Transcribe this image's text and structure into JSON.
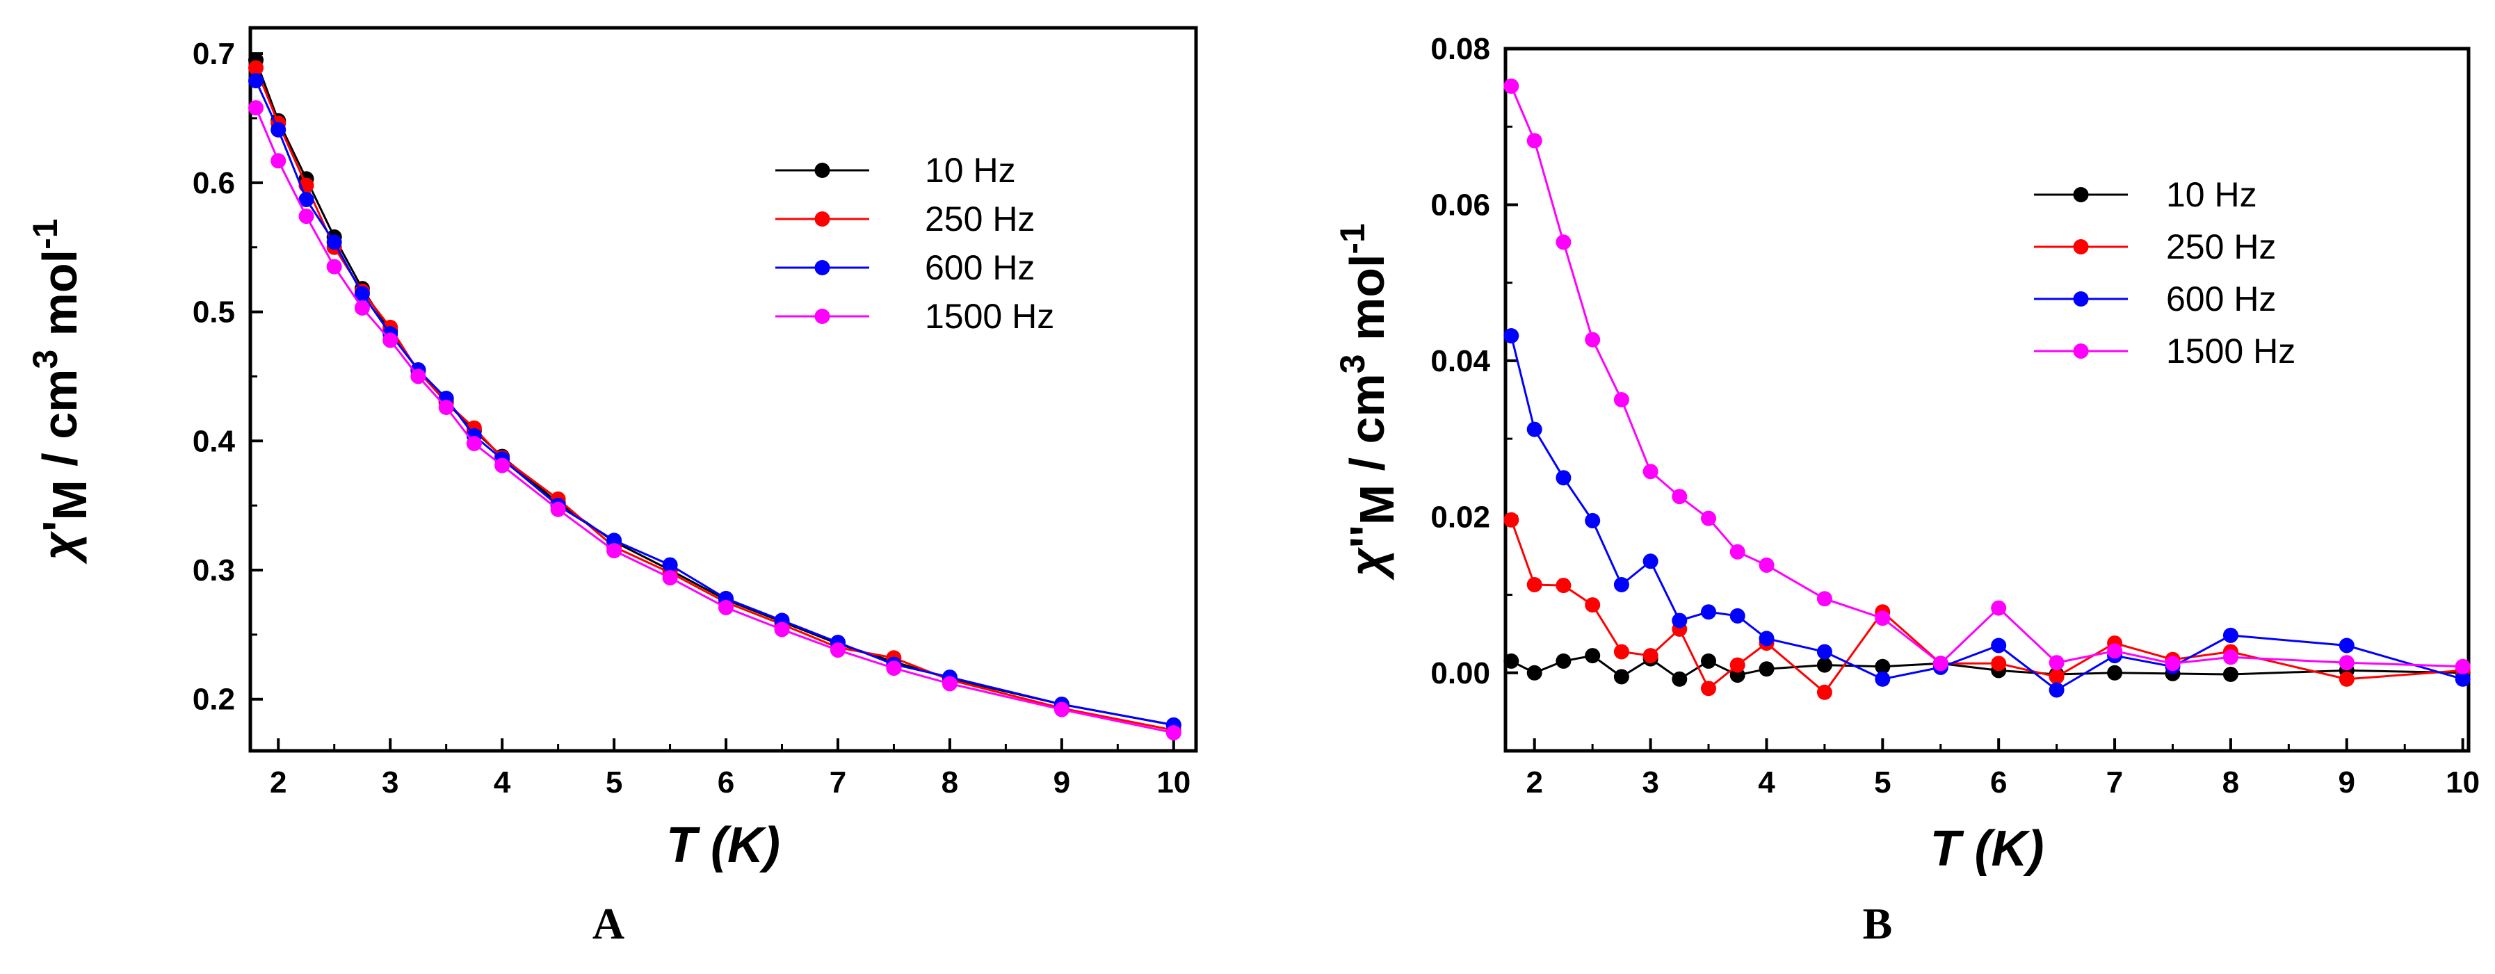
{
  "figure": {
    "panel_a_label": "A",
    "panel_b_label": "B"
  },
  "chart_data": [
    {
      "id": "A",
      "type": "line",
      "title": "",
      "xlabel": "T (K)",
      "ylabel": {
        "chi": "χ",
        "prime": "'",
        "sub": "M",
        "unit": " / cm",
        "sup3": "3",
        "mol": " mol",
        "supneg": "-1"
      },
      "xlim": [
        1.75,
        10.2
      ],
      "ylim": [
        0.16,
        0.72
      ],
      "xticks": [
        2,
        3,
        4,
        5,
        6,
        7,
        8,
        9,
        10
      ],
      "yticks": [
        0.2,
        0.3,
        0.4,
        0.5,
        0.6,
        0.7
      ],
      "ytick_labels": [
        "0.2",
        "0.3",
        "0.4",
        "0.5",
        "0.6",
        "0.7"
      ],
      "legend_position": "upper-right",
      "x": [
        1.8,
        2.0,
        2.25,
        2.5,
        2.75,
        3.0,
        3.25,
        3.5,
        3.75,
        4.0,
        4.5,
        5.0,
        5.5,
        6.0,
        6.5,
        7.0,
        7.5,
        8.0,
        9.0,
        10.0
      ],
      "series": [
        {
          "name": "10 Hz",
          "color": "#000000",
          "values": [
            0.695,
            0.648,
            0.603,
            0.558,
            0.518,
            0.485,
            0.455,
            0.43,
            0.408,
            0.388,
            0.352,
            0.322,
            0.3,
            0.277,
            0.26,
            0.243,
            0.229,
            0.216,
            0.196,
            0.18
          ]
        },
        {
          "name": "250 Hz",
          "color": "#ff0000",
          "values": [
            0.689,
            0.646,
            0.598,
            0.55,
            0.516,
            0.488,
            0.454,
            0.43,
            0.41,
            0.387,
            0.355,
            0.318,
            0.298,
            0.275,
            0.258,
            0.24,
            0.232,
            0.215,
            0.193,
            0.176
          ]
        },
        {
          "name": "600 Hz",
          "color": "#0000ff",
          "values": [
            0.679,
            0.641,
            0.587,
            0.554,
            0.514,
            0.483,
            0.455,
            0.433,
            0.404,
            0.386,
            0.35,
            0.323,
            0.304,
            0.278,
            0.261,
            0.244,
            0.227,
            0.217,
            0.196,
            0.18
          ]
        },
        {
          "name": "1500 Hz",
          "color": "#ff00ff",
          "values": [
            0.658,
            0.617,
            0.574,
            0.535,
            0.503,
            0.478,
            0.45,
            0.426,
            0.398,
            0.381,
            0.347,
            0.315,
            0.294,
            0.271,
            0.254,
            0.238,
            0.224,
            0.212,
            0.192,
            0.174
          ]
        }
      ]
    },
    {
      "id": "B",
      "type": "line",
      "title": "",
      "xlabel": "T (K)",
      "ylabel": {
        "chi": "χ",
        "prime": "''",
        "sub": "M",
        "unit": " / cm",
        "sup3": "3",
        "mol": " mol",
        "supneg": "-1"
      },
      "xlim": [
        1.75,
        10.05
      ],
      "ylim": [
        -0.01,
        0.08
      ],
      "xticks": [
        2,
        3,
        4,
        5,
        6,
        7,
        8,
        9,
        10
      ],
      "yticks": [
        0.0,
        0.02,
        0.04,
        0.06,
        0.08
      ],
      "ytick_labels": [
        "0.00",
        "0.02",
        "0.04",
        "0.06",
        "0.08"
      ],
      "legend_position": "upper-right",
      "x": [
        1.8,
        2.0,
        2.25,
        2.5,
        2.75,
        3.0,
        3.25,
        3.5,
        3.75,
        4.0,
        4.5,
        5.0,
        5.5,
        6.0,
        6.5,
        7.0,
        7.5,
        8.0,
        9.0,
        10.0
      ],
      "series": [
        {
          "name": "10 Hz",
          "color": "#000000",
          "values": [
            0.0015,
            0.0,
            0.0015,
            0.0022,
            -0.0005,
            0.0018,
            -0.0008,
            0.0015,
            -0.0003,
            0.0005,
            0.001,
            0.0008,
            0.0012,
            0.0003,
            -0.0002,
            0.0,
            -0.0001,
            -0.0002,
            0.0003,
            0.0
          ]
        },
        {
          "name": "250 Hz",
          "color": "#ff0000",
          "values": [
            0.0196,
            0.0113,
            0.0112,
            0.0087,
            0.0027,
            0.0022,
            0.0056,
            -0.002,
            0.001,
            0.0038,
            -0.0025,
            0.0078,
            0.0012,
            0.0012,
            -0.0005,
            0.0038,
            0.0017,
            0.0027,
            -0.0008,
            0.0003
          ]
        },
        {
          "name": "600 Hz",
          "color": "#0000ff",
          "values": [
            0.0432,
            0.0312,
            0.025,
            0.0195,
            0.0113,
            0.0143,
            0.0067,
            0.0078,
            0.0073,
            0.0044,
            0.0027,
            -0.0008,
            0.0007,
            0.0035,
            -0.0022,
            0.0022,
            0.0008,
            0.0048,
            0.0035,
            -0.0008
          ]
        },
        {
          "name": "1500 Hz",
          "color": "#ff00ff",
          "values": [
            0.0752,
            0.0682,
            0.0552,
            0.0427,
            0.035,
            0.0258,
            0.0226,
            0.0198,
            0.0155,
            0.0138,
            0.0095,
            0.007,
            0.0012,
            0.0083,
            0.0013,
            0.0028,
            0.0012,
            0.002,
            0.0013,
            0.0008
          ]
        }
      ]
    }
  ]
}
